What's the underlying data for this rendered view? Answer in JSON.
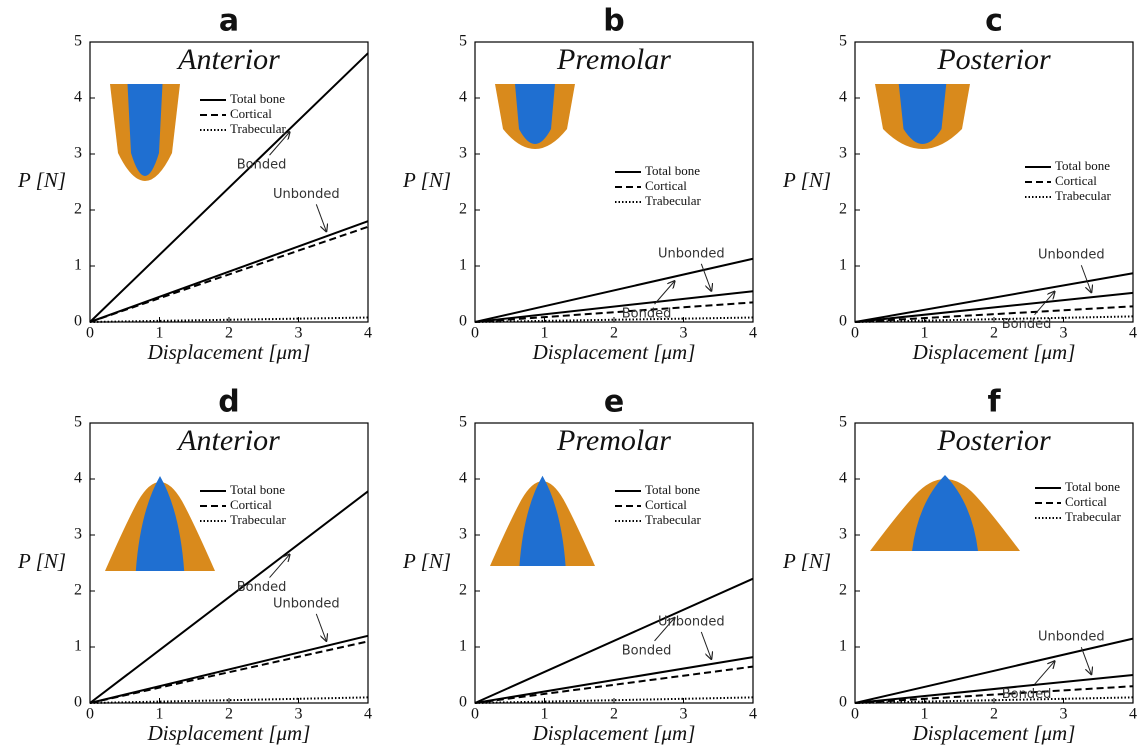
{
  "chart_data": [
    {
      "type": "line",
      "panel": "a",
      "title": "Anterior",
      "xlabel": "Displacement [μm]",
      "ylabel": "P [N]",
      "x": [
        0,
        4
      ],
      "xlim": [
        0,
        4
      ],
      "ylim": [
        0,
        5
      ],
      "xticks": [
        0,
        1,
        2,
        3,
        4
      ],
      "yticks": [
        0,
        1,
        2,
        3,
        4,
        5
      ],
      "legend": [
        {
          "label": "Total bone",
          "style": "solid"
        },
        {
          "label": "Cortical",
          "style": "dashed"
        },
        {
          "label": "Trabecular",
          "style": "dotted"
        }
      ],
      "series": [
        {
          "style": "solid",
          "values": [
            0,
            4.8
          ]
        },
        {
          "style": "solid",
          "values": [
            0,
            1.8
          ]
        },
        {
          "style": "dashed",
          "values": [
            0,
            1.7
          ]
        },
        {
          "style": "dotted",
          "values": [
            0,
            0.08
          ]
        }
      ],
      "annotations": [
        "Bonded",
        "Unbonded"
      ]
    },
    {
      "type": "line",
      "panel": "b",
      "title": "Premolar",
      "xlabel": "Displacement [μm]",
      "ylabel": "P [N]",
      "x": [
        0,
        4
      ],
      "xlim": [
        0,
        4
      ],
      "ylim": [
        0,
        5
      ],
      "xticks": [
        0,
        1,
        2,
        3,
        4
      ],
      "yticks": [
        0,
        1,
        2,
        3,
        4,
        5
      ],
      "legend": [
        {
          "label": "Total bone",
          "style": "solid"
        },
        {
          "label": "Cortical",
          "style": "dashed"
        },
        {
          "label": "Trabecular",
          "style": "dotted"
        }
      ],
      "series": [
        {
          "style": "solid",
          "values": [
            0,
            1.13
          ]
        },
        {
          "style": "solid",
          "values": [
            0,
            0.55
          ]
        },
        {
          "style": "dashed",
          "values": [
            0,
            0.35
          ]
        },
        {
          "style": "dotted",
          "values": [
            0,
            0.08
          ]
        }
      ],
      "annotations": [
        "Bonded",
        "Unbonded"
      ]
    },
    {
      "type": "line",
      "panel": "c",
      "title": "Posterior",
      "xlabel": "Displacement [μm]",
      "ylabel": "P [N]",
      "x": [
        0,
        4
      ],
      "xlim": [
        0,
        4
      ],
      "ylim": [
        0,
        5
      ],
      "xticks": [
        0,
        1,
        2,
        3,
        4
      ],
      "yticks": [
        0,
        1,
        2,
        3,
        4,
        5
      ],
      "legend": [
        {
          "label": "Total bone",
          "style": "solid"
        },
        {
          "label": "Cortical",
          "style": "dashed"
        },
        {
          "label": "Trabecular",
          "style": "dotted"
        }
      ],
      "series": [
        {
          "style": "solid",
          "values": [
            0,
            0.87
          ]
        },
        {
          "style": "solid",
          "values": [
            0,
            0.52
          ]
        },
        {
          "style": "dashed",
          "values": [
            0,
            0.28
          ]
        },
        {
          "style": "dotted",
          "values": [
            0,
            0.1
          ]
        }
      ],
      "annotations": [
        "Bonded",
        "Unbonded"
      ]
    },
    {
      "type": "line",
      "panel": "d",
      "title": "Anterior",
      "xlabel": "Displacement [μm]",
      "ylabel": "P [N]",
      "x": [
        0,
        4
      ],
      "xlim": [
        0,
        4
      ],
      "ylim": [
        0,
        5
      ],
      "xticks": [
        0,
        1,
        2,
        3,
        4
      ],
      "yticks": [
        0,
        1,
        2,
        3,
        4,
        5
      ],
      "legend": [
        {
          "label": "Total bone",
          "style": "solid"
        },
        {
          "label": "Cortical",
          "style": "dashed"
        },
        {
          "label": "Trabecular",
          "style": "dotted"
        }
      ],
      "series": [
        {
          "style": "solid",
          "values": [
            0,
            3.78
          ]
        },
        {
          "style": "solid",
          "values": [
            0,
            1.2
          ]
        },
        {
          "style": "dashed",
          "values": [
            0,
            1.1
          ]
        },
        {
          "style": "dotted",
          "values": [
            0,
            0.1
          ]
        }
      ],
      "annotations": [
        "Bonded",
        "Unbonded"
      ]
    },
    {
      "type": "line",
      "panel": "e",
      "title": "Premolar",
      "xlabel": "Displacement [μm]",
      "ylabel": "P [N]",
      "x": [
        0,
        4
      ],
      "xlim": [
        0,
        4
      ],
      "ylim": [
        0,
        5
      ],
      "xticks": [
        0,
        1,
        2,
        3,
        4
      ],
      "yticks": [
        0,
        1,
        2,
        3,
        4,
        5
      ],
      "legend": [
        {
          "label": "Total bone",
          "style": "solid"
        },
        {
          "label": "Cortical",
          "style": "dashed"
        },
        {
          "label": "Trabecular",
          "style": "dotted"
        }
      ],
      "series": [
        {
          "style": "solid",
          "values": [
            0,
            2.22
          ]
        },
        {
          "style": "solid",
          "values": [
            0,
            0.82
          ]
        },
        {
          "style": "dashed",
          "values": [
            0,
            0.65
          ]
        },
        {
          "style": "dotted",
          "values": [
            0,
            0.1
          ]
        }
      ],
      "annotations": [
        "Bonded",
        "Unbonded"
      ]
    },
    {
      "type": "line",
      "panel": "f",
      "title": "Posterior",
      "xlabel": "Displacement [μm]",
      "ylabel": "P [N]",
      "x": [
        0,
        4
      ],
      "xlim": [
        0,
        4
      ],
      "ylim": [
        0,
        5
      ],
      "xticks": [
        0,
        1,
        2,
        3,
        4
      ],
      "yticks": [
        0,
        1,
        2,
        3,
        4,
        5
      ],
      "legend": [
        {
          "label": "Total bone",
          "style": "solid"
        },
        {
          "label": "Cortical",
          "style": "dashed"
        },
        {
          "label": "Trabecular",
          "style": "dotted"
        }
      ],
      "series": [
        {
          "style": "solid",
          "values": [
            0,
            1.15
          ]
        },
        {
          "style": "solid",
          "values": [
            0,
            0.5
          ]
        },
        {
          "style": "dashed",
          "values": [
            0,
            0.3
          ]
        },
        {
          "style": "dotted",
          "values": [
            0,
            0.1
          ]
        }
      ],
      "annotations": [
        "Bonded",
        "Unbonded"
      ]
    }
  ]
}
